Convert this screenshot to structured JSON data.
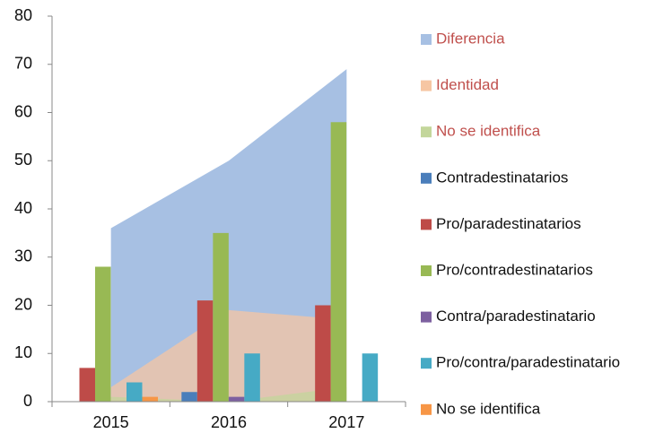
{
  "chart_data": {
    "type": "bar",
    "categories": [
      "2015",
      "2016",
      "2017"
    ],
    "ylim": [
      0,
      80
    ],
    "yticks": [
      0,
      10,
      20,
      30,
      40,
      50,
      60,
      70,
      80
    ],
    "series": [
      {
        "name": "Diferencia",
        "type": "area",
        "color": "#a7c0e3",
        "values": [
          36,
          50,
          69
        ]
      },
      {
        "name": "Identidad",
        "type": "area",
        "color": "#f6c6a3",
        "values": [
          3,
          19,
          17
        ]
      },
      {
        "name": "No se identifica",
        "type": "area",
        "color": "#c3d69b",
        "values": [
          1,
          0,
          3
        ]
      },
      {
        "name": "Contradestinatarios",
        "type": "bar",
        "color": "#4a7ebb",
        "values": [
          0,
          2,
          0
        ]
      },
      {
        "name": "Pro/paradestinatarios",
        "type": "bar",
        "color": "#be4b48",
        "values": [
          7,
          21,
          20
        ]
      },
      {
        "name": "Pro/contradestinatarios",
        "type": "bar",
        "color": "#98b954",
        "values": [
          28,
          35,
          58
        ]
      },
      {
        "name": "Contra/paradestinatario",
        "type": "bar",
        "color": "#7d60a0",
        "values": [
          0,
          1,
          0
        ]
      },
      {
        "name": "Pro/contra/paradestinatario",
        "type": "bar",
        "color": "#46aac5",
        "values": [
          4,
          10,
          10
        ]
      },
      {
        "name": "No se identifica",
        "type": "bar",
        "color": "#f79646",
        "values": [
          1,
          0,
          0
        ]
      }
    ]
  }
}
